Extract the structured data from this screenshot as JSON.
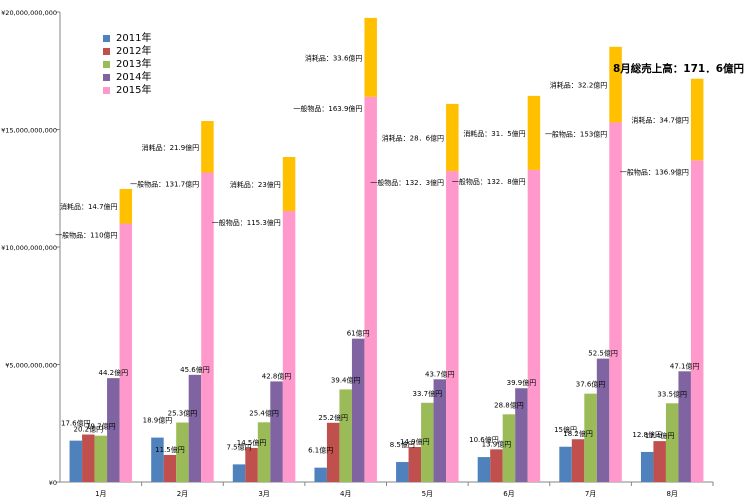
{
  "chart_data": {
    "type": "bar",
    "categories": [
      "1月",
      "2月",
      "3月",
      "4月",
      "5月",
      "6月",
      "7月",
      "8月"
    ],
    "y_ticks": [
      "¥0",
      "¥5,000,000,000",
      "¥10,000,000,000",
      "¥15,000,000,000",
      "¥20,000,000,000"
    ],
    "ylim": [
      0,
      20000000000
    ],
    "grid": false,
    "legend_position": "top-left",
    "series": [
      {
        "name": "2011年",
        "color": "#4f81bd",
        "values": [
          1760000000,
          1890000000,
          750000000,
          610000000,
          850000000,
          1060000000,
          1500000000,
          1280000000
        ],
        "labels": [
          "17.6億円",
          "18.9億円",
          "7.5億円",
          "6.1億円",
          "8.5億円",
          "10.6億円",
          "15億円",
          "12.8億円"
        ]
      },
      {
        "name": "2012年",
        "color": "#c0504d",
        "values": [
          2020000000,
          1150000000,
          1450000000,
          2520000000,
          1490000000,
          1390000000,
          1820000000,
          1740000000
        ],
        "labels": [
          "20.2億円",
          "11.5億円",
          "14.5億円",
          "25.2億円",
          "14.9億円",
          "13.9億円",
          "18.2億円",
          "17.4億円"
        ]
      },
      {
        "name": "2013年",
        "color": "#9bbb59",
        "values": [
          1970000000,
          2530000000,
          2540000000,
          3940000000,
          3370000000,
          2880000000,
          3760000000,
          3350000000
        ],
        "labels": [
          "19.7億円",
          "25.3億円",
          "25.4億円",
          "39.4億円",
          "33.7億円",
          "28.8億円",
          "37.6億円",
          "33.5億円"
        ]
      },
      {
        "name": "2014年",
        "color": "#8064a2",
        "values": [
          4420000000,
          4560000000,
          4280000000,
          6100000000,
          4370000000,
          3990000000,
          5250000000,
          4710000000
        ],
        "labels": [
          "44.2億円",
          "45.6億円",
          "42.8億円",
          "61億円",
          "43.7億円",
          "39.9億円",
          "52.5億円",
          "47.1億円"
        ]
      },
      {
        "name": "2015年",
        "color": "#ff99cc",
        "stack": "2015",
        "values": [
          11000000000,
          13170000000,
          11530000000,
          16390000000,
          13230000000,
          13280000000,
          15300000000,
          13690000000
        ],
        "labels": [
          "一般物品：110億円",
          "一般物品：131.7億円",
          "一般物品：115.3億円",
          "一般物品：163.9億円",
          "一般物品：132．3億円",
          "一般物品：132．8億円",
          "一般物品：153億円",
          "一般物品：136.9億円"
        ]
      },
      {
        "name": "",
        "color": "#ffc000",
        "stack": "2015",
        "values": [
          1470000000,
          2190000000,
          2300000000,
          3360000000,
          2860000000,
          3150000000,
          3220000000,
          3470000000
        ],
        "labels": [
          "消耗品：14.7億円",
          "消耗品：21.9億円",
          "消耗品：23億円",
          "消耗品：33.6億円",
          "消耗品：28．6億円",
          "消耗品：31．5億円",
          "消耗品：32.2億円",
          "消耗品：34.7億円"
        ]
      }
    ],
    "annotations": [
      "8月総売上高：171．6億円"
    ]
  }
}
